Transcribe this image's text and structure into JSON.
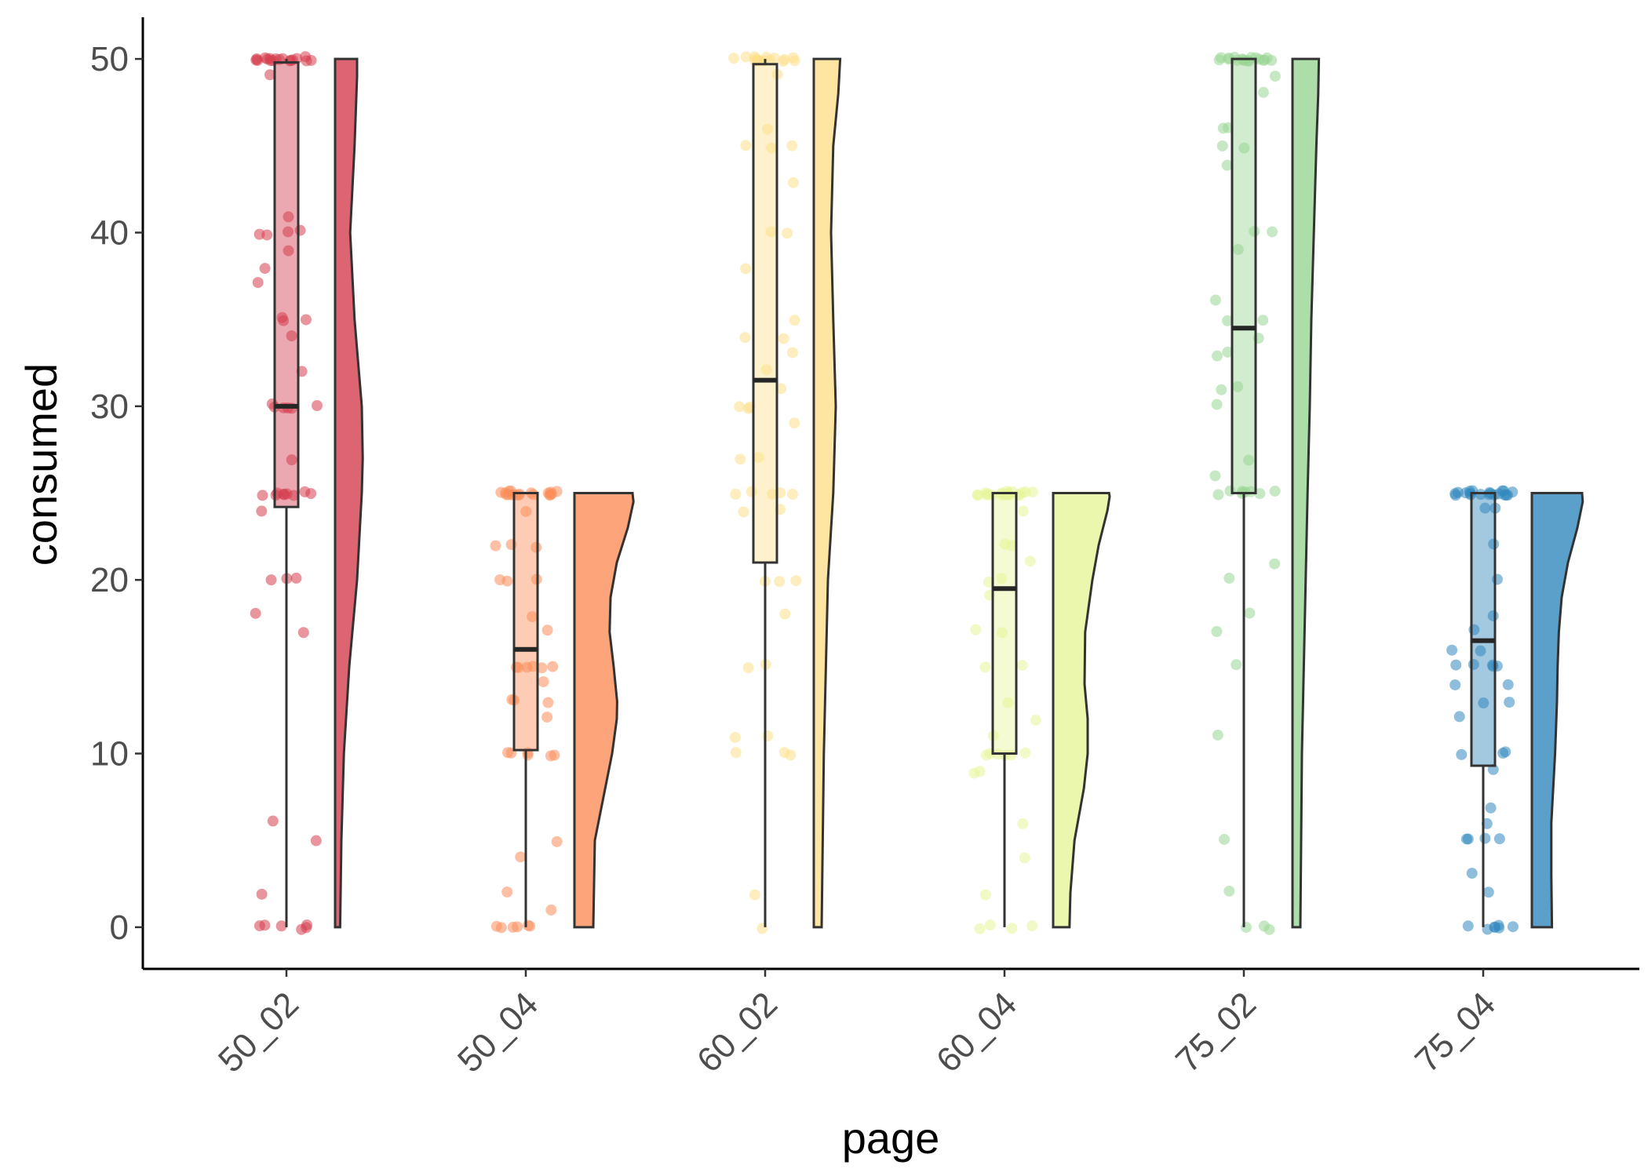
{
  "chart_data": {
    "type": "raincloud",
    "title": "",
    "xlabel": "page",
    "ylabel": "consumed",
    "ylim": [
      -2.4,
      52.4
    ],
    "yticks": [
      0,
      10,
      20,
      30,
      40,
      50
    ],
    "categories": [
      "50_02",
      "50_04",
      "60_02",
      "60_04",
      "75_02",
      "75_04"
    ],
    "colors": [
      "#d53e4f",
      "#fc8d59",
      "#fee08b",
      "#e6f598",
      "#99d594",
      "#3288bd"
    ],
    "violin_fill_opacity": 0.8,
    "box_fill_opacity": 0.45,
    "point_opacity": 0.55,
    "grid": false,
    "legend": "none",
    "groups": [
      {
        "name": "50_02",
        "box": {
          "min": 0,
          "q1": 24.2,
          "median": 30,
          "q3": 49.8,
          "max": 50
        },
        "violin_width": [
          [
            0,
            0.16
          ],
          [
            5,
            0.2
          ],
          [
            10,
            0.28
          ],
          [
            15,
            0.45
          ],
          [
            20,
            0.7
          ],
          [
            25,
            0.85
          ],
          [
            27,
            0.88
          ],
          [
            30,
            0.85
          ],
          [
            35,
            0.62
          ],
          [
            40,
            0.48
          ],
          [
            45,
            0.62
          ],
          [
            49,
            0.7
          ],
          [
            50,
            0.7
          ]
        ],
        "points": [
          0,
          0,
          0,
          0,
          0,
          0,
          2,
          5,
          6,
          17,
          18,
          20,
          20,
          20,
          24,
          25,
          25,
          25,
          25,
          25,
          25,
          25,
          25,
          25,
          27,
          30,
          30,
          30,
          30,
          30,
          30,
          32,
          34,
          35,
          35,
          35,
          37,
          38,
          39,
          40,
          40,
          40,
          40,
          41,
          49,
          50,
          50,
          50,
          50,
          50,
          50,
          50,
          50,
          50,
          50,
          50,
          50,
          50,
          50,
          50,
          50,
          50,
          50
        ]
      },
      {
        "name": "50_04",
        "box": {
          "min": 0,
          "q1": 10.2,
          "median": 16,
          "q3": 25,
          "max": 25
        },
        "violin_width": [
          [
            0,
            0.6
          ],
          [
            2,
            0.62
          ],
          [
            5,
            0.65
          ],
          [
            8,
            0.98
          ],
          [
            10,
            1.2
          ],
          [
            12,
            1.35
          ],
          [
            13,
            1.36
          ],
          [
            15,
            1.25
          ],
          [
            17,
            1.12
          ],
          [
            19,
            1.15
          ],
          [
            21,
            1.35
          ],
          [
            23,
            1.7
          ],
          [
            24.5,
            1.88
          ],
          [
            25,
            1.85
          ]
        ],
        "points": [
          0,
          0,
          0,
          0,
          0,
          0,
          1,
          2,
          4,
          5,
          10,
          10,
          10,
          10,
          10,
          10,
          12,
          13,
          13,
          13,
          14,
          15,
          15,
          15,
          15,
          15,
          15,
          17,
          18,
          20,
          20,
          20,
          22,
          22,
          22,
          24,
          25,
          25,
          25,
          25,
          25,
          25,
          25,
          25,
          25,
          25,
          25,
          25,
          25,
          25,
          25,
          25,
          25,
          25
        ]
      },
      {
        "name": "60_02",
        "box": {
          "min": 0,
          "q1": 21,
          "median": 31.5,
          "q3": 49.7,
          "max": 50
        },
        "violin_width": [
          [
            0,
            0.25
          ],
          [
            10,
            0.32
          ],
          [
            20,
            0.45
          ],
          [
            25,
            0.62
          ],
          [
            30,
            0.7
          ],
          [
            35,
            0.62
          ],
          [
            40,
            0.55
          ],
          [
            45,
            0.62
          ],
          [
            48,
            0.78
          ],
          [
            50,
            0.84
          ]
        ],
        "points": [
          0,
          2,
          10,
          10,
          10,
          11,
          11,
          15,
          15,
          18,
          20,
          20,
          20,
          24,
          24,
          25,
          25,
          25,
          25,
          25,
          27,
          27,
          29,
          30,
          30,
          30,
          31,
          32,
          33,
          34,
          34,
          35,
          38,
          40,
          40,
          43,
          45,
          45,
          45,
          46,
          49,
          50,
          50,
          50,
          50,
          50,
          50,
          50,
          50,
          50,
          50,
          50,
          50,
          50,
          50,
          50,
          50
        ]
      },
      {
        "name": "60_04",
        "box": {
          "min": 0,
          "q1": 10,
          "median": 19.5,
          "q3": 25,
          "max": 25
        },
        "violin_width": [
          [
            0,
            0.52
          ],
          [
            2,
            0.55
          ],
          [
            5,
            0.68
          ],
          [
            8,
            0.98
          ],
          [
            10,
            1.1
          ],
          [
            12,
            1.1
          ],
          [
            14,
            1.0
          ],
          [
            17,
            1.02
          ],
          [
            20,
            1.25
          ],
          [
            22,
            1.45
          ],
          [
            24,
            1.73
          ],
          [
            24.8,
            1.8
          ],
          [
            25,
            1.78
          ]
        ],
        "points": [
          0,
          0,
          0,
          0,
          2,
          4,
          6,
          9,
          9,
          10,
          10,
          10,
          10,
          10,
          10,
          11,
          12,
          13,
          15,
          15,
          17,
          17,
          19,
          20,
          20,
          21,
          22,
          22,
          24,
          25,
          25,
          25,
          25,
          25,
          25,
          25,
          25,
          25,
          25,
          25,
          25,
          25,
          25,
          25,
          25,
          25,
          25,
          25,
          25
        ]
      },
      {
        "name": "75_02",
        "box": {
          "min": 0,
          "q1": 25,
          "median": 34.5,
          "q3": 50,
          "max": 50
        },
        "violin_width": [
          [
            0,
            0.25
          ],
          [
            10,
            0.3
          ],
          [
            20,
            0.42
          ],
          [
            25,
            0.48
          ],
          [
            30,
            0.55
          ],
          [
            35,
            0.6
          ],
          [
            40,
            0.68
          ],
          [
            45,
            0.76
          ],
          [
            48,
            0.82
          ],
          [
            50,
            0.84
          ]
        ],
        "points": [
          0,
          0,
          0,
          2,
          5,
          11,
          15,
          17,
          18,
          20,
          21,
          25,
          25,
          25,
          25,
          25,
          25,
          25,
          25,
          26,
          27,
          30,
          31,
          31,
          33,
          33,
          34,
          35,
          35,
          36,
          39,
          40,
          40,
          44,
          45,
          45,
          46,
          46,
          48,
          49,
          50,
          50,
          50,
          50,
          50,
          50,
          50,
          50,
          50,
          50,
          50,
          50,
          50,
          50,
          50,
          50,
          50,
          50
        ]
      },
      {
        "name": "75_04",
        "box": {
          "min": 0,
          "q1": 9.3,
          "median": 16.5,
          "q3": 25,
          "max": 25
        },
        "violin_width": [
          [
            0,
            0.64
          ],
          [
            3,
            0.62
          ],
          [
            6,
            0.62
          ],
          [
            8,
            0.68
          ],
          [
            10,
            0.74
          ],
          [
            13,
            0.8
          ],
          [
            15,
            0.82
          ],
          [
            17,
            0.86
          ],
          [
            19,
            0.95
          ],
          [
            21,
            1.15
          ],
          [
            23,
            1.45
          ],
          [
            24.5,
            1.62
          ],
          [
            25,
            1.6
          ]
        ],
        "points": [
          0,
          0,
          0,
          0,
          0,
          0,
          0,
          2,
          3,
          5,
          5,
          5,
          5,
          6,
          7,
          9,
          10,
          10,
          10,
          12,
          13,
          13,
          14,
          14,
          15,
          15,
          15,
          15,
          15,
          16,
          16,
          17,
          18,
          20,
          22,
          24,
          24,
          25,
          25,
          25,
          25,
          25,
          25,
          25,
          25,
          25,
          25,
          25,
          25,
          25,
          25,
          25,
          25,
          25,
          25,
          25,
          25
        ]
      }
    ]
  }
}
